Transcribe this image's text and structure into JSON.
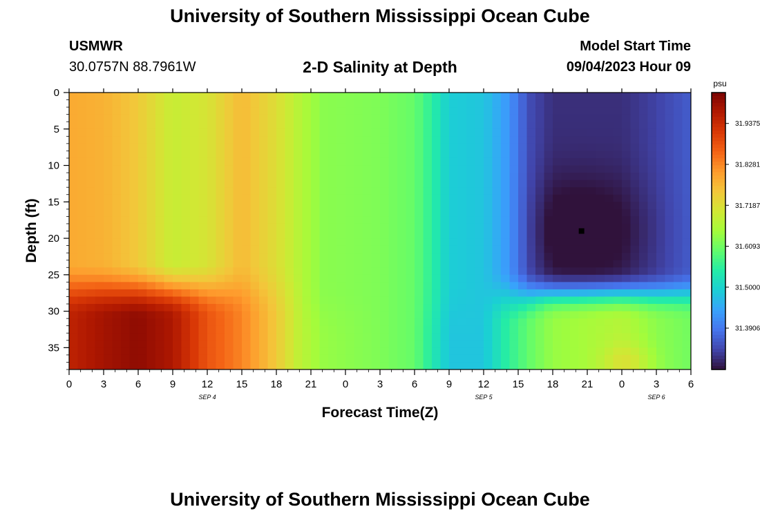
{
  "header": {
    "title": "University of Southern Mississippi Ocean Cube",
    "station_id": "USMWR",
    "coordinates": "30.0757N  88.7961W",
    "plot_title": "2-D Salinity at Depth",
    "model_label": "Model Start Time",
    "model_time": "09/04/2023 Hour 09"
  },
  "footer": {
    "title": "University of Southern Mississippi Ocean Cube"
  },
  "chart_data": {
    "type": "heatmap",
    "title": "2-D Salinity at Depth",
    "xlabel": "Forecast Time(Z)",
    "ylabel": "Depth (ft)",
    "x_tick_labels": [
      "0",
      "3",
      "6",
      "9",
      "12",
      "15",
      "18",
      "21",
      "0",
      "3",
      "6",
      "9",
      "12",
      "15",
      "18",
      "21",
      "0",
      "3",
      "6"
    ],
    "x_tick_hours": [
      0,
      3,
      6,
      9,
      12,
      15,
      18,
      21,
      24,
      27,
      30,
      33,
      36,
      39,
      42,
      45,
      48,
      51,
      54
    ],
    "date_labels": [
      {
        "text": "SEP 4",
        "hour": 12
      },
      {
        "text": "SEP 5",
        "hour": 36
      },
      {
        "text": "SEP 6",
        "hour": 51
      }
    ],
    "xlim": [
      0,
      54
    ],
    "ylim": [
      0,
      38
    ],
    "y_ticks": [
      0,
      5,
      10,
      15,
      20,
      25,
      30,
      35
    ],
    "y_inverted": true,
    "colorbar": {
      "unit": "psu",
      "min": 31.28,
      "max": 32.02,
      "tick_values": [
        31.9375,
        31.8281,
        31.7187,
        31.6093,
        31.5,
        31.3906
      ],
      "tick_labels": [
        "31.9375",
        "31.8281",
        "31.7187",
        "31.6093",
        "31.5000",
        "31.3906"
      ],
      "colormap": [
        "#30123b",
        "#4145ab",
        "#4675ed",
        "#39a2fc",
        "#1bcfd4",
        "#24eca6",
        "#61fc6c",
        "#a4fc3b",
        "#d1e834",
        "#f3c63a",
        "#fe9b2d",
        "#f36315",
        "#d93806",
        "#b11901",
        "#7a0403"
      ]
    },
    "marker": {
      "hour": 44.5,
      "depth": 19
    },
    "salinity_model": {
      "grid_time_step_hours": 0.75,
      "grid_depth_step_ft": 1,
      "value_range": [
        31.28,
        32.02
      ],
      "description": "estimated field: high (~31.78-31.99) Sep 4 00-15Z with max near bottom at 06Z; ~31.62 Sep 4 21Z - Sep 5 06Z; ~31.50 near Sep 5 09-12Z; minimum ~31.29 near Sep 5 21Z at 19 ft; bottom warm pocket ~31.68 near Sep 6 00Z"
    }
  }
}
